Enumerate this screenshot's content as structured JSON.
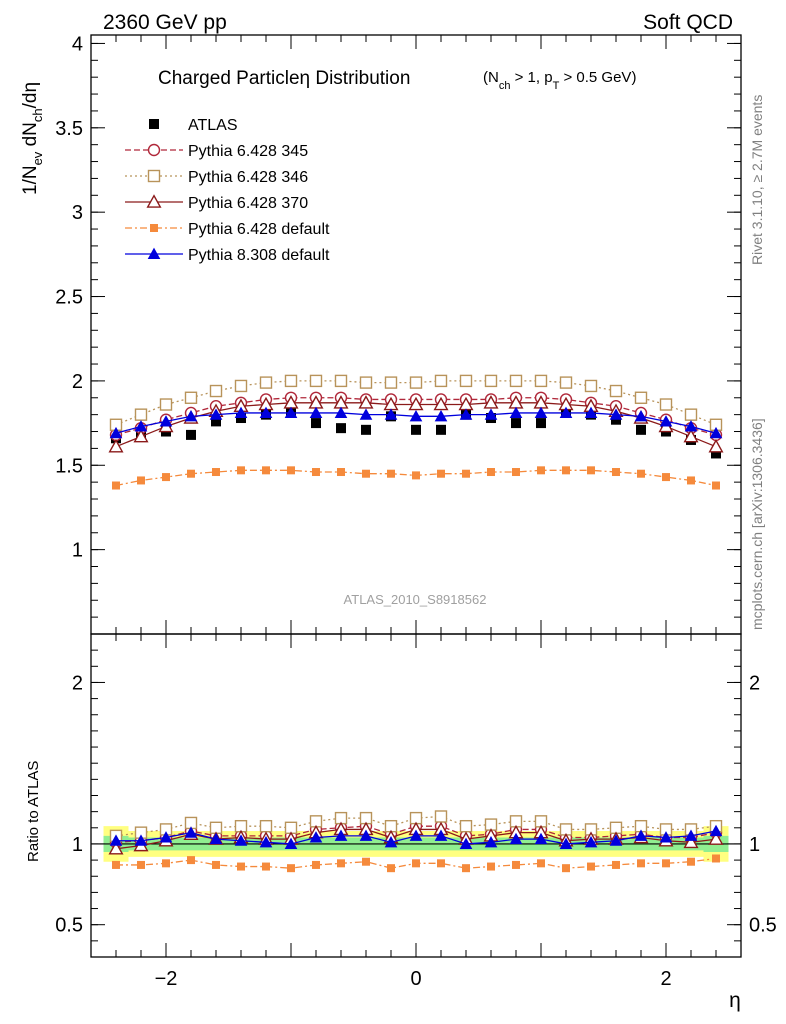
{
  "header": {
    "left": "2360 GeV pp",
    "right": "Soft QCD"
  },
  "side_labels": {
    "rivet": "Rivet 3.1.10, ≥ 2.7M events",
    "source": "mcplots.cern.ch [arXiv:1306.3436]"
  },
  "watermark": "ATLAS_2010_S8918562",
  "chart_data": [
    {
      "type": "line",
      "title_main": "Charged Particleη Distribution",
      "title_cuts": "(N_ch > 1, p_T > 0.5 GeV)",
      "ylabel": "1/N_ev dN_ch/dη",
      "xlabel": "η",
      "xlim": [
        -2.6,
        2.6
      ],
      "ylim": [
        0.5,
        4.05
      ],
      "yticks": [
        1,
        1.5,
        2,
        2.5,
        3,
        3.5,
        4
      ],
      "ytick_labels": [
        "1",
        "1.5",
        "2",
        "2.5",
        "3",
        "3.5",
        "4"
      ],
      "x": [
        -2.4,
        -2.2,
        -2.0,
        -1.8,
        -1.6,
        -1.4,
        -1.2,
        -1.0,
        -0.8,
        -0.6,
        -0.4,
        -0.2,
        0.0,
        0.2,
        0.4,
        0.6,
        0.8,
        1.0,
        1.2,
        1.4,
        1.6,
        1.8,
        2.0,
        2.2,
        2.4
      ],
      "legend_position": "top-left",
      "series": [
        {
          "name": "ATLAS",
          "color": "#000000",
          "marker": "square-filled",
          "line": "none",
          "values": [
            1.66,
            1.69,
            1.7,
            1.68,
            1.76,
            1.78,
            1.8,
            1.81,
            1.75,
            1.72,
            1.71,
            1.79,
            1.71,
            1.71,
            1.8,
            1.78,
            1.75,
            1.75,
            1.82,
            1.8,
            1.77,
            1.71,
            1.7,
            1.65,
            1.57
          ]
        },
        {
          "name": "Pythia 6.428 345",
          "color": "#b0283a",
          "marker": "circle-open",
          "line": "dashed",
          "values": [
            1.68,
            1.72,
            1.77,
            1.81,
            1.85,
            1.87,
            1.89,
            1.9,
            1.9,
            1.9,
            1.89,
            1.89,
            1.89,
            1.89,
            1.89,
            1.89,
            1.9,
            1.9,
            1.89,
            1.87,
            1.85,
            1.81,
            1.77,
            1.72,
            1.68
          ]
        },
        {
          "name": "Pythia 6.428 346",
          "color": "#b8935a",
          "marker": "square-open",
          "line": "dotted",
          "values": [
            1.74,
            1.8,
            1.86,
            1.9,
            1.94,
            1.97,
            1.99,
            2.0,
            2.0,
            2.0,
            1.99,
            1.99,
            1.99,
            2.0,
            2.0,
            2.0,
            2.0,
            2.0,
            1.99,
            1.97,
            1.94,
            1.9,
            1.86,
            1.8,
            1.74
          ]
        },
        {
          "name": "Pythia 6.428 370",
          "color": "#8b1a1a",
          "marker": "triangle-open",
          "line": "solid",
          "values": [
            1.61,
            1.67,
            1.73,
            1.78,
            1.82,
            1.85,
            1.86,
            1.87,
            1.87,
            1.87,
            1.87,
            1.86,
            1.86,
            1.86,
            1.86,
            1.87,
            1.87,
            1.87,
            1.86,
            1.85,
            1.82,
            1.78,
            1.73,
            1.67,
            1.61
          ]
        },
        {
          "name": "Pythia 6.428 default",
          "color": "#f58a3c",
          "marker": "square-filled",
          "line": "dashdot",
          "values": [
            1.38,
            1.41,
            1.43,
            1.45,
            1.46,
            1.47,
            1.47,
            1.47,
            1.46,
            1.46,
            1.45,
            1.45,
            1.44,
            1.45,
            1.45,
            1.46,
            1.46,
            1.47,
            1.47,
            1.47,
            1.46,
            1.45,
            1.43,
            1.41,
            1.38
          ]
        },
        {
          "name": "Pythia 8.308 default",
          "color": "#0000dd",
          "marker": "triangle-filled",
          "line": "solid",
          "values": [
            1.69,
            1.73,
            1.76,
            1.79,
            1.8,
            1.81,
            1.81,
            1.81,
            1.81,
            1.81,
            1.8,
            1.8,
            1.79,
            1.79,
            1.8,
            1.8,
            1.81,
            1.81,
            1.81,
            1.81,
            1.8,
            1.79,
            1.76,
            1.73,
            1.69
          ]
        }
      ]
    },
    {
      "type": "line",
      "ylabel": "Ratio to ATLAS",
      "xlabel": "η",
      "xlim": [
        -2.6,
        2.6
      ],
      "ylim": [
        0.3,
        2.3
      ],
      "yticks": [
        0.5,
        1,
        2
      ],
      "ytick_labels": [
        "0.5",
        "1",
        "2"
      ],
      "xticks": [
        -2,
        0,
        2
      ],
      "xtick_labels": [
        "−2",
        "0",
        "2"
      ],
      "x": [
        -2.4,
        -2.2,
        -2.0,
        -1.8,
        -1.6,
        -1.4,
        -1.2,
        -1.0,
        -0.8,
        -0.6,
        -0.4,
        -0.2,
        0.0,
        0.2,
        0.4,
        0.6,
        0.8,
        1.0,
        1.2,
        1.4,
        1.6,
        1.8,
        2.0,
        2.2,
        2.4
      ],
      "bands": {
        "inner_color": "#90ee90",
        "outer_color": "#ffff80",
        "inner_halfwidth": [
          0.05,
          0.04,
          0.04,
          0.04,
          0.04,
          0.04,
          0.04,
          0.04,
          0.04,
          0.04,
          0.04,
          0.04,
          0.04,
          0.04,
          0.04,
          0.04,
          0.04,
          0.04,
          0.04,
          0.04,
          0.04,
          0.04,
          0.04,
          0.04,
          0.05
        ],
        "outer_halfwidth": [
          0.11,
          0.08,
          0.08,
          0.08,
          0.08,
          0.08,
          0.08,
          0.08,
          0.08,
          0.08,
          0.08,
          0.08,
          0.08,
          0.08,
          0.08,
          0.08,
          0.08,
          0.08,
          0.08,
          0.08,
          0.08,
          0.08,
          0.08,
          0.08,
          0.11
        ]
      },
      "series": [
        {
          "name": "Pythia 6.428 345",
          "color": "#b0283a",
          "marker": "circle-open",
          "line": "dashed",
          "values": [
            1.01,
            1.02,
            1.04,
            1.08,
            1.05,
            1.05,
            1.05,
            1.05,
            1.09,
            1.1,
            1.11,
            1.06,
            1.11,
            1.11,
            1.05,
            1.06,
            1.09,
            1.09,
            1.04,
            1.04,
            1.05,
            1.06,
            1.04,
            1.04,
            1.07
          ]
        },
        {
          "name": "Pythia 6.428 346",
          "color": "#b8935a",
          "marker": "square-open",
          "line": "dotted",
          "values": [
            1.05,
            1.07,
            1.09,
            1.13,
            1.1,
            1.11,
            1.11,
            1.1,
            1.14,
            1.16,
            1.16,
            1.11,
            1.16,
            1.17,
            1.11,
            1.12,
            1.14,
            1.14,
            1.09,
            1.09,
            1.1,
            1.11,
            1.09,
            1.09,
            1.11
          ]
        },
        {
          "name": "Pythia 6.428 370",
          "color": "#8b1a1a",
          "marker": "triangle-open",
          "line": "solid",
          "values": [
            0.97,
            0.99,
            1.02,
            1.06,
            1.03,
            1.04,
            1.03,
            1.03,
            1.07,
            1.09,
            1.09,
            1.04,
            1.09,
            1.09,
            1.03,
            1.05,
            1.07,
            1.07,
            1.02,
            1.03,
            1.03,
            1.04,
            1.02,
            1.01,
            1.03
          ]
        },
        {
          "name": "Pythia 6.428 default",
          "color": "#f58a3c",
          "marker": "square-filled",
          "line": "dashdot",
          "values": [
            0.87,
            0.87,
            0.88,
            0.9,
            0.87,
            0.86,
            0.86,
            0.85,
            0.87,
            0.88,
            0.89,
            0.85,
            0.88,
            0.88,
            0.85,
            0.86,
            0.87,
            0.88,
            0.85,
            0.86,
            0.87,
            0.88,
            0.88,
            0.89,
            0.91
          ]
        },
        {
          "name": "Pythia 8.308 default",
          "color": "#0000dd",
          "marker": "triangle-filled",
          "line": "solid",
          "values": [
            1.02,
            1.02,
            1.04,
            1.07,
            1.03,
            1.02,
            1.01,
            1.0,
            1.04,
            1.05,
            1.05,
            1.01,
            1.05,
            1.05,
            1.0,
            1.01,
            1.03,
            1.03,
            1.0,
            1.01,
            1.02,
            1.05,
            1.04,
            1.05,
            1.08
          ]
        }
      ]
    }
  ]
}
